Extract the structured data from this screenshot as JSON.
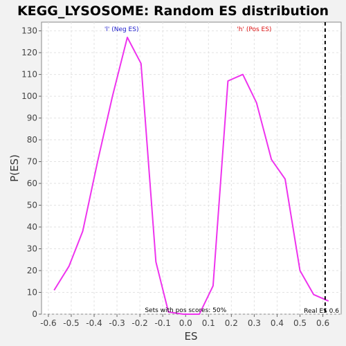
{
  "chart_data": {
    "type": "line",
    "title": "KEGG_LYSOSOME: Random ES distribution",
    "xlabel": "ES",
    "ylabel": "P(ES)",
    "xlim": [
      -0.63,
      0.68
    ],
    "ylim": [
      0,
      134
    ],
    "x_ticks": [
      "-0.6",
      "-0.5",
      "-0.4",
      "-0.3",
      "-0.2",
      "-0.1",
      "0.0",
      "0.1",
      "0.2",
      "0.3",
      "0.4",
      "0.5",
      "0.6"
    ],
    "y_ticks": [
      "0",
      "10",
      "20",
      "30",
      "40",
      "50",
      "60",
      "70",
      "80",
      "90",
      "100",
      "110",
      "120",
      "130"
    ],
    "grid": true,
    "series": [
      {
        "color": "#ee33ee",
        "points": [
          [
            -0.575,
            11
          ],
          [
            -0.51,
            22
          ],
          [
            -0.45,
            38
          ],
          [
            -0.385,
            70
          ],
          [
            -0.32,
            100
          ],
          [
            -0.255,
            127
          ],
          [
            -0.195,
            115
          ],
          [
            -0.13,
            24
          ],
          [
            -0.075,
            1
          ],
          [
            -0.01,
            0
          ],
          [
            0.06,
            0
          ],
          [
            0.12,
            13
          ],
          [
            0.185,
            107
          ],
          [
            0.25,
            110
          ],
          [
            0.31,
            97
          ],
          [
            0.375,
            71
          ],
          [
            0.435,
            62
          ],
          [
            0.5,
            20
          ],
          [
            0.56,
            9
          ],
          [
            0.625,
            6
          ]
        ]
      }
    ],
    "real_es": 0.61,
    "real_es_label": "Real ES 0.6",
    "neg_label": "'l' (Neg ES)",
    "neg_color": "#1a1acc",
    "pos_label": "'h' (Pos ES)",
    "pos_color": "#dd1111",
    "pos_scores_label": "Sets with pos scores: 50%"
  }
}
